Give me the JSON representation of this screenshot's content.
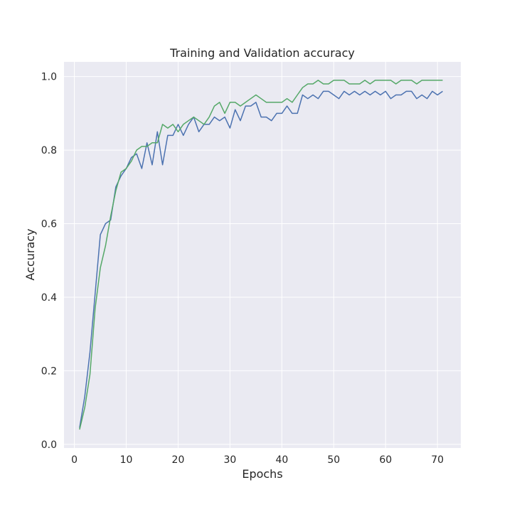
{
  "chart_data": {
    "type": "line",
    "title": "Training and Validation accuracy",
    "xlabel": "Epochs",
    "ylabel": "Accuracy",
    "xlim": [
      -2,
      74.5
    ],
    "ylim": [
      -0.01,
      1.04
    ],
    "xticks": [
      0,
      10,
      20,
      30,
      40,
      50,
      60,
      70
    ],
    "yticks": [
      0.0,
      0.2,
      0.4,
      0.6,
      0.8,
      1.0
    ],
    "ytick_labels": [
      "0.0",
      "0.2",
      "0.4",
      "0.6",
      "0.8",
      "1.0"
    ],
    "grid": true,
    "legend": "none",
    "background_color": "#eaeaf2",
    "grid_color": "#ffffff",
    "x": [
      1,
      2,
      3,
      4,
      5,
      6,
      7,
      8,
      9,
      10,
      11,
      12,
      13,
      14,
      15,
      16,
      17,
      18,
      19,
      20,
      21,
      22,
      23,
      24,
      25,
      26,
      27,
      28,
      29,
      30,
      31,
      32,
      33,
      34,
      35,
      36,
      37,
      38,
      39,
      40,
      41,
      42,
      43,
      44,
      45,
      46,
      47,
      48,
      49,
      50,
      51,
      52,
      53,
      54,
      55,
      56,
      57,
      58,
      59,
      60,
      61,
      62,
      63,
      64,
      65,
      66,
      67,
      68,
      69,
      70,
      71
    ],
    "series": [
      {
        "color": "#4c72b0",
        "values": [
          0.045,
          0.13,
          0.25,
          0.41,
          0.57,
          0.6,
          0.61,
          0.7,
          0.73,
          0.75,
          0.78,
          0.79,
          0.75,
          0.82,
          0.76,
          0.85,
          0.76,
          0.84,
          0.84,
          0.87,
          0.84,
          0.87,
          0.89,
          0.85,
          0.87,
          0.87,
          0.89,
          0.88,
          0.89,
          0.86,
          0.91,
          0.88,
          0.92,
          0.92,
          0.93,
          0.89,
          0.89,
          0.88,
          0.9,
          0.9,
          0.92,
          0.9,
          0.9,
          0.95,
          0.94,
          0.95,
          0.94,
          0.96,
          0.96,
          0.95,
          0.94,
          0.96,
          0.95,
          0.96,
          0.95,
          0.96,
          0.95,
          0.96,
          0.95,
          0.96,
          0.94,
          0.95,
          0.95,
          0.96,
          0.96,
          0.94,
          0.95,
          0.94,
          0.96,
          0.95,
          0.96
        ]
      },
      {
        "color": "#55a868",
        "values": [
          0.04,
          0.1,
          0.19,
          0.37,
          0.48,
          0.54,
          0.62,
          0.69,
          0.74,
          0.75,
          0.77,
          0.8,
          0.81,
          0.81,
          0.82,
          0.82,
          0.87,
          0.86,
          0.87,
          0.85,
          0.87,
          0.88,
          0.89,
          0.88,
          0.87,
          0.89,
          0.92,
          0.93,
          0.9,
          0.93,
          0.93,
          0.92,
          0.93,
          0.94,
          0.95,
          0.94,
          0.93,
          0.93,
          0.93,
          0.93,
          0.94,
          0.93,
          0.95,
          0.97,
          0.98,
          0.98,
          0.99,
          0.98,
          0.98,
          0.99,
          0.99,
          0.99,
          0.98,
          0.98,
          0.98,
          0.99,
          0.98,
          0.99,
          0.99,
          0.99,
          0.99,
          0.98,
          0.99,
          0.99,
          0.99,
          0.98,
          0.99,
          0.99,
          0.99,
          0.99,
          0.99
        ]
      }
    ]
  }
}
